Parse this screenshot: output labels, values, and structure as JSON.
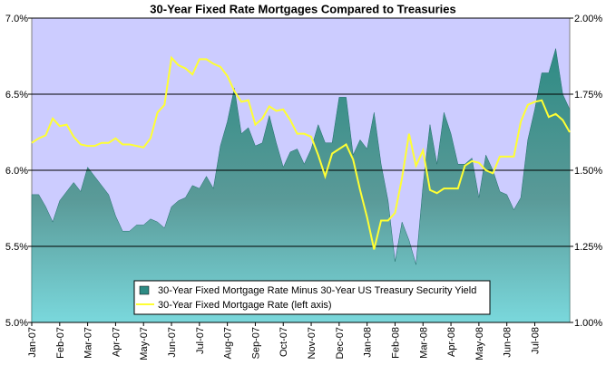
{
  "chart_data": {
    "type": "area",
    "title": "30-Year Fixed Rate Mortgages Compared to Treasuries",
    "categories": [
      "Jan-07",
      null,
      null,
      null,
      "Feb-07",
      null,
      null,
      null,
      "Mar-07",
      null,
      null,
      null,
      "Apr-07",
      null,
      null,
      null,
      "May-07",
      null,
      null,
      null,
      "Jun-07",
      null,
      null,
      null,
      "Jul-07",
      null,
      null,
      null,
      "Aug-07",
      null,
      null,
      null,
      "Sep-07",
      null,
      null,
      null,
      "Oct-07",
      null,
      null,
      null,
      "Nov-07",
      null,
      null,
      null,
      "Dec-07",
      null,
      null,
      null,
      "Jan-08",
      null,
      null,
      null,
      "Feb-08",
      null,
      null,
      null,
      "Mar-08",
      null,
      null,
      null,
      "Apr-08",
      null,
      null,
      null,
      "May-08",
      null,
      null,
      null,
      "Jun-08",
      null,
      null,
      null,
      "Jul-08",
      null,
      null,
      null,
      null,
      null
    ],
    "series": [
      {
        "name": "30-Year Fixed Mortgage Rate Minus 30-Year US Treasury Security Yield",
        "type": "area",
        "axis": "y2",
        "color": "#2e8b84",
        "values": [
          1.42,
          1.42,
          1.38,
          1.33,
          1.4,
          1.43,
          1.46,
          1.43,
          1.51,
          1.48,
          1.45,
          1.42,
          1.35,
          1.3,
          1.3,
          1.32,
          1.32,
          1.34,
          1.33,
          1.31,
          1.38,
          1.4,
          1.41,
          1.45,
          1.44,
          1.48,
          1.44,
          1.58,
          1.66,
          1.77,
          1.62,
          1.64,
          1.58,
          1.59,
          1.68,
          1.59,
          1.51,
          1.56,
          1.57,
          1.52,
          1.57,
          1.65,
          1.59,
          1.59,
          1.74,
          1.74,
          1.55,
          1.6,
          1.57,
          1.69,
          1.52,
          1.4,
          1.2,
          1.33,
          1.27,
          1.19,
          1.45,
          1.65,
          1.52,
          1.69,
          1.62,
          1.52,
          1.52,
          1.54,
          1.41,
          1.55,
          1.5,
          1.43,
          1.42,
          1.37,
          1.41,
          1.6,
          1.7,
          1.82,
          1.82,
          1.9,
          1.75,
          1.7
        ]
      },
      {
        "name": "30-Year Fixed Mortgage Rate (left axis)",
        "type": "line",
        "color": "#ffff33",
        "values": [
          6.18,
          6.21,
          6.23,
          6.34,
          6.29,
          6.3,
          6.22,
          6.17,
          6.16,
          6.16,
          6.18,
          6.18,
          6.21,
          6.17,
          6.17,
          6.16,
          6.15,
          6.21,
          6.38,
          6.43,
          6.74,
          6.69,
          6.67,
          6.63,
          6.73,
          6.73,
          6.7,
          6.68,
          6.62,
          6.52,
          6.45,
          6.46,
          6.3,
          6.34,
          6.42,
          6.39,
          6.4,
          6.33,
          6.24,
          6.24,
          6.22,
          6.1,
          5.96,
          6.11,
          6.14,
          6.17,
          6.07,
          5.87,
          5.69,
          5.48,
          5.67,
          5.67,
          5.72,
          5.95,
          6.24,
          6.03,
          6.13,
          5.87,
          5.85,
          5.88,
          5.88,
          5.88,
          6.03,
          6.06,
          6.05,
          6.0,
          5.98,
          6.09,
          6.09,
          6.09,
          6.32,
          6.43,
          6.45,
          6.46,
          6.35,
          6.37,
          6.33,
          6.25
        ]
      }
    ],
    "ylim": [
      5,
      7
    ],
    "yticks": [
      {
        "value": 5,
        "label": "5.0%"
      },
      {
        "value": 5.5,
        "label": "5.5%"
      },
      {
        "value": 6,
        "label": "6.0%"
      },
      {
        "value": 6.5,
        "label": "6.5%"
      },
      {
        "value": 7,
        "label": "7.0%"
      }
    ],
    "y2lim": [
      1,
      2
    ],
    "y2ticks": [
      {
        "value": 1,
        "label": "1.00%"
      },
      {
        "value": 1.25,
        "label": "1.25%"
      },
      {
        "value": 1.5,
        "label": "1.50%"
      },
      {
        "value": 1.75,
        "label": "1.75%"
      },
      {
        "value": 2,
        "label": "2.00%"
      }
    ],
    "grid": true,
    "legend": "bottom"
  }
}
